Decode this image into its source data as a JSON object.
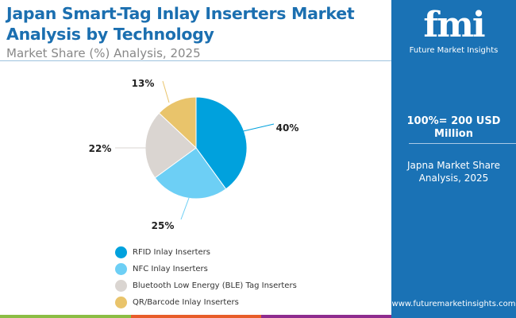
{
  "header": {
    "title": "Japan Smart-Tag Inlay Inserters Market Analysis by Technology",
    "subtitle": "Market Share (%) Analysis, 2025"
  },
  "panel": {
    "logo_text": "fmi",
    "brand": "Future Market Insights",
    "total": "100%= 200 USD Million",
    "description": "Japna Market Share Analysis, 2025",
    "url": "www.futuremarketinsights.com"
  },
  "chart_data": {
    "type": "pie",
    "categories": [
      "RFID Inlay Inserters",
      "NFC Inlay Inserters",
      "Bluetooth Low Energy (BLE) Tag Inserters",
      "QR/Barcode Inlay Inserters"
    ],
    "values": [
      40,
      25,
      22,
      13
    ],
    "labels": [
      "40%",
      "25%",
      "22%",
      "13%"
    ],
    "colors": [
      "#00a1dd",
      "#6dcff5",
      "#dad5d1",
      "#e9c46b"
    ],
    "legend_position": "bottom"
  }
}
